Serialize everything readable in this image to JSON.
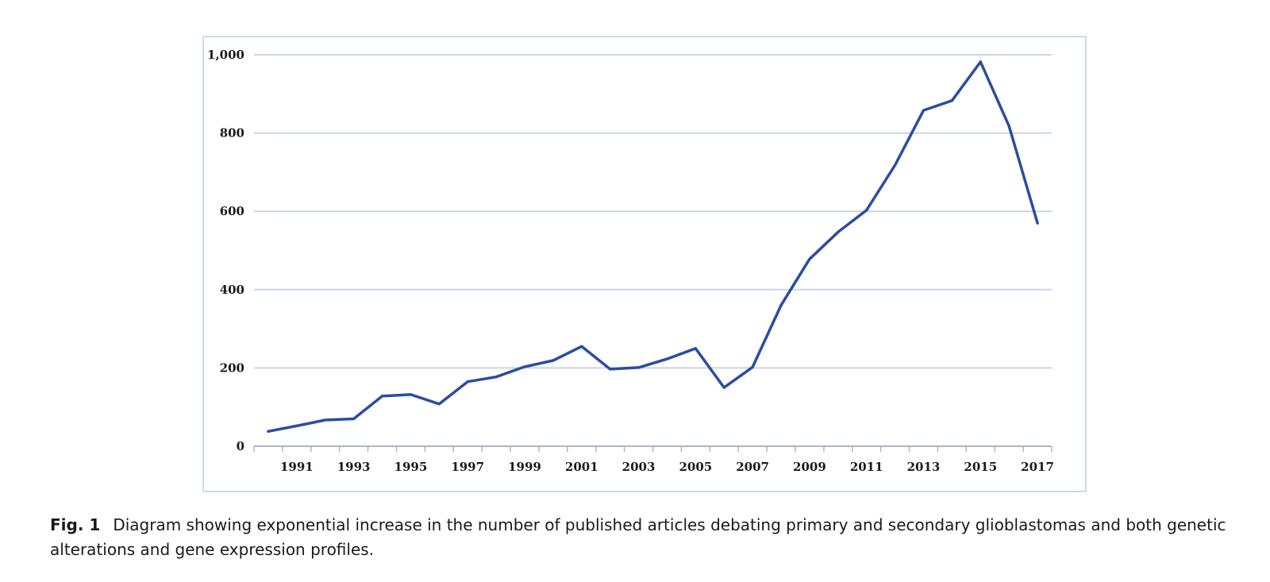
{
  "chart_data": {
    "type": "line",
    "title": "",
    "xlabel": "",
    "ylabel": "",
    "x": [
      1990,
      1991,
      1992,
      1993,
      1994,
      1995,
      1996,
      1997,
      1998,
      1999,
      2000,
      2001,
      2002,
      2003,
      2004,
      2005,
      2006,
      2007,
      2008,
      2009,
      2010,
      2011,
      2012,
      2013,
      2014,
      2015,
      2016,
      2017
    ],
    "series": [
      {
        "name": "",
        "color": "#2b4da0",
        "values": [
          38,
          52,
          67,
          70,
          128,
          132,
          108,
          165,
          177,
          203,
          219,
          255,
          197,
          201,
          223,
          250,
          150,
          202,
          360,
          478,
          547,
          603,
          718,
          858,
          883,
          982,
          818,
          570
        ]
      }
    ],
    "xlim": [
      1989.5,
      2017.5
    ],
    "ylim": [
      0,
      1000
    ],
    "y_ticks": [
      0,
      200,
      400,
      600,
      800,
      1000
    ],
    "y_tick_labels": [
      "0",
      "200",
      "400",
      "600",
      "800",
      "1,000"
    ],
    "x_tick_labels": [
      "1991",
      "1993",
      "1995",
      "1997",
      "1999",
      "2001",
      "2003",
      "2005",
      "2007",
      "2009",
      "2011",
      "2013",
      "2015",
      "2017"
    ],
    "grid": "horizontal",
    "legend": "none"
  },
  "caption": {
    "label": "Fig. 1",
    "text": "Diagram showing exponential increase in the number of published articles debating primary and secondary glioblastomas and both genetic alterations and gene expression profiles."
  }
}
